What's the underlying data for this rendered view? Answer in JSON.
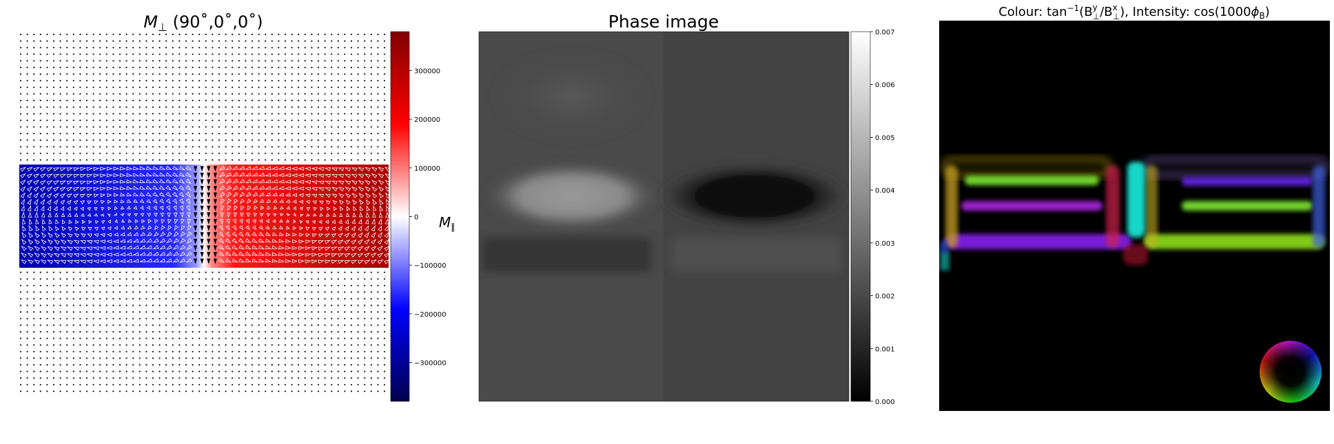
{
  "chart_data": [
    {
      "type": "heatmap",
      "title_symbol": "M",
      "title_subscript": "⊥",
      "title_rest": " (90˚,0˚,0˚)",
      "colorbar": {
        "label_symbol": "M",
        "label_subscript": "∥",
        "colormap": "seismic",
        "range": [
          -380000,
          380000
        ],
        "ticks": [
          300000,
          200000,
          100000,
          0,
          -100000,
          -200000,
          -300000
        ],
        "tick_labels": [
          "300000",
          "200000",
          "100000",
          "0",
          "−100000",
          "−200000",
          "−300000"
        ]
      },
      "overlay": "quiver arrows of in-plane magnetization; dots outside the element",
      "element_rows": [
        0.36,
        0.64
      ],
      "domain_wall_x": 0.5
    },
    {
      "type": "heatmap",
      "title": "Phase image",
      "colormap": "gray",
      "colorbar": {
        "range": [
          0.0,
          0.007
        ],
        "ticks": [
          0.007,
          0.006,
          0.005,
          0.004,
          0.003,
          0.002,
          0.001,
          0.0
        ],
        "tick_labels": [
          "0.007",
          "0.006",
          "0.005",
          "0.004",
          "0.003",
          "0.002",
          "0.001",
          "0.000"
        ]
      },
      "background_value": 0.0027,
      "bright_lobe_value": 0.0048,
      "dark_lobe_value": 0.0001
    },
    {
      "type": "heatmap",
      "title_parts": [
        "Colour: tan",
        "−1",
        "(B",
        "y",
        "⊥",
        "/B",
        "x",
        "⊥",
        "),  Intensity: cos(1000",
        "ϕ",
        "B",
        ")"
      ],
      "colour_wheel": true,
      "background": "#000000",
      "colours": [
        "#7a1fd6",
        "#6fd12a",
        "#19d6c8",
        "#d11a3a",
        "#2240d8"
      ]
    }
  ]
}
